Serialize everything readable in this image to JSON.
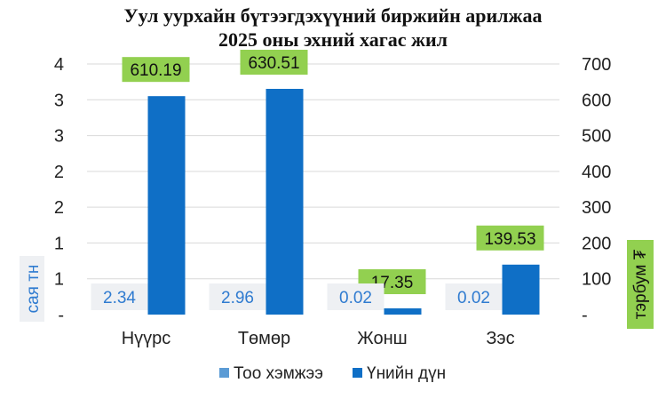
{
  "title_line1": "Уул уурхайн бүтээгдэхүүний биржийн арилжаа",
  "title_line2": "2025 оны эхний хагас жил",
  "chart_data": {
    "type": "bar",
    "title": "Уул уурхайн бүтээгдэхүүний биржийн арилжаа 2025 оны эхний хагас жил",
    "categories": [
      "Нүүрс",
      "Төмөр",
      "Жонш",
      "Зэс"
    ],
    "series": [
      {
        "name": "Тоо хэмжээ",
        "axis": "left",
        "values": [
          2.34,
          2.96,
          0.02,
          0.02
        ],
        "labels": [
          "2.34",
          "2.96",
          "0.02",
          "0.02"
        ],
        "color": "#5b9bd5"
      },
      {
        "name": "Үнийн дүн",
        "axis": "right",
        "values": [
          610.19,
          630.51,
          17.35,
          139.53
        ],
        "labels": [
          "610.19",
          "630.51",
          "17.35",
          "139.53"
        ],
        "color": "#0f6fc6"
      }
    ],
    "ylabel": "сая тн",
    "y2label": "тэрбум ₮",
    "yticks": [
      "-",
      "1",
      "1",
      "2",
      "2",
      "3",
      "3",
      "4"
    ],
    "y2ticks": [
      "-",
      "100",
      "200",
      "300",
      "400",
      "500",
      "600",
      "700"
    ],
    "y2lim": [
      0,
      700
    ],
    "grid": true,
    "legend_position": "bottom",
    "colors": {
      "value_bar": "#0f6fc6",
      "quantity": "#5b9bd5",
      "value_label_bg": "#92d050",
      "quantity_label_bg": "#eef0f3",
      "grid": "#d9d9d9"
    }
  }
}
